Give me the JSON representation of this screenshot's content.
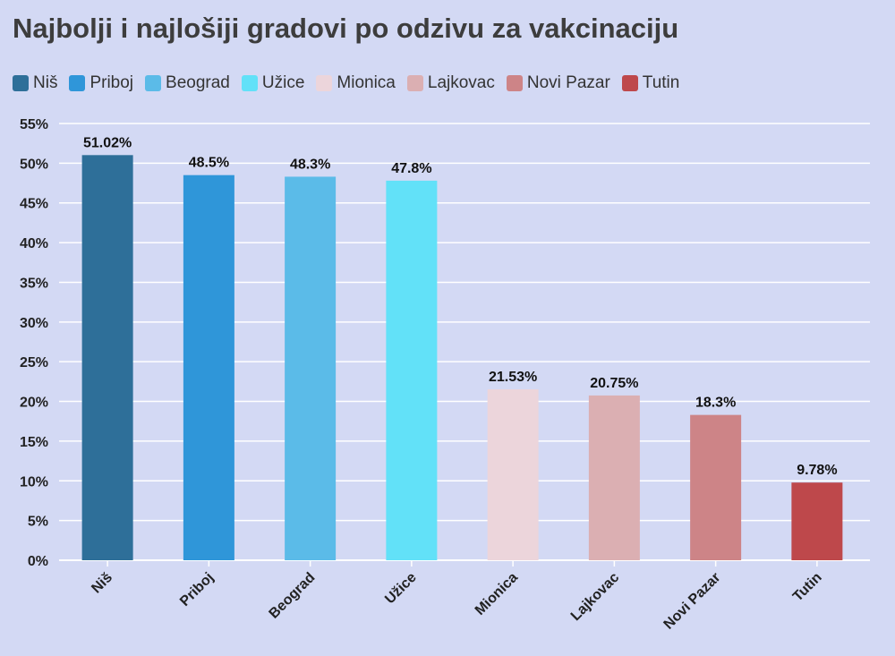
{
  "chart_data": {
    "type": "bar",
    "title": "Najbolji i najlošiji gradovi po odzivu za vakcinaciju",
    "categories": [
      "Niš",
      "Priboj",
      "Beograd",
      "Užice",
      "Mionica",
      "Lajkovac",
      "Novi Pazar",
      "Tutin"
    ],
    "values": [
      51.02,
      48.5,
      48.3,
      47.8,
      21.53,
      20.75,
      18.3,
      9.78
    ],
    "data_labels": [
      "51.02%",
      "48.5%",
      "48.3%",
      "47.8%",
      "21.53%",
      "20.75%",
      "18.3%",
      "9.78%"
    ],
    "colors": [
      "#2e6f99",
      "#2f96d9",
      "#5bbbe8",
      "#62e1f8",
      "#ecd5db",
      "#dbafb2",
      "#cd8487",
      "#be484b"
    ],
    "legend": [
      "Niš",
      "Priboj",
      "Beograd",
      "Užice",
      "Mionica",
      "Lajkovac",
      "Novi Pazar",
      "Tutin"
    ],
    "legend_position": "top-left",
    "ylim": [
      0,
      55
    ],
    "yticks": [
      0,
      5,
      10,
      15,
      20,
      25,
      30,
      35,
      40,
      45,
      50,
      55
    ],
    "ytick_labels": [
      "0%",
      "5%",
      "10%",
      "15%",
      "20%",
      "25%",
      "30%",
      "35%",
      "40%",
      "45%",
      "50%",
      "55%"
    ],
    "grid": true,
    "background": "#d3d9f4"
  }
}
